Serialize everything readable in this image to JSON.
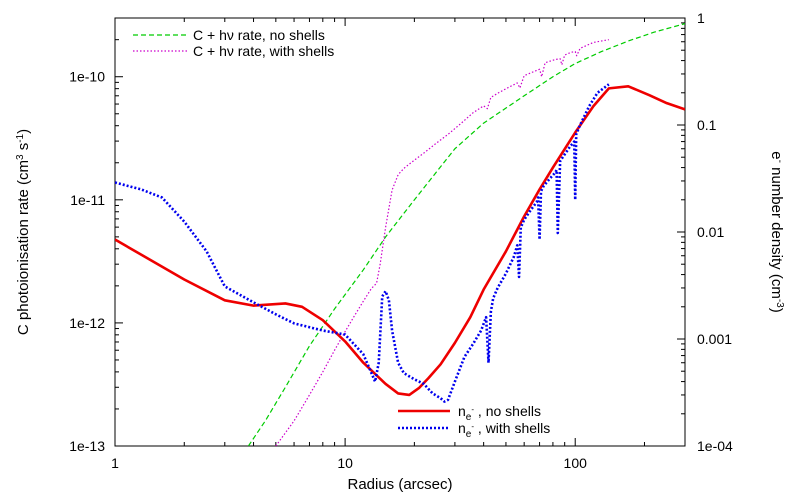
{
  "chart_data": {
    "type": "line",
    "xlabel": "Radius (arcsec)",
    "ylabel_left": "C photoionisation rate (cm^3 s^-1)",
    "ylabel_right": "e^- number density (cm^-3)",
    "x_scale": "log",
    "y_left_scale": "log",
    "y_right_scale": "log",
    "xlim": [
      1,
      300
    ],
    "ylim_left": [
      1e-13,
      3e-10
    ],
    "ylim_right": [
      0.0001,
      1
    ],
    "x_ticks": [
      {
        "value": 1,
        "label": "1"
      },
      {
        "value": 10,
        "label": "10"
      },
      {
        "value": 100,
        "label": "100"
      }
    ],
    "y_left_ticks": [
      {
        "value": 1e-13,
        "label": "1e-13"
      },
      {
        "value": 1e-12,
        "label": "1e-12"
      },
      {
        "value": 1e-11,
        "label": "1e-11"
      },
      {
        "value": 1e-10,
        "label": "1e-10"
      }
    ],
    "y_right_ticks": [
      {
        "value": 0.0001,
        "label": "1e-04"
      },
      {
        "value": 0.001,
        "label": "0.001"
      },
      {
        "value": 0.01,
        "label": "0.01"
      },
      {
        "value": 0.1,
        "label": "0.1"
      },
      {
        "value": 1,
        "label": "1"
      }
    ],
    "legend_top_left": [
      "C + hν rate, no shells",
      "C + hν rate, with shells"
    ],
    "legend_bottom": [
      "n_e- , no shells",
      "n_e- , with shells"
    ],
    "series": [
      {
        "name": "C + hν rate, no shells",
        "axis": "left",
        "color": "#00cc00",
        "dash": "5,3",
        "width": 1.2,
        "x": [
          3.8,
          4.5,
          5.5,
          7,
          9,
          12,
          15,
          20,
          30,
          40,
          60,
          80,
          100,
          130,
          170,
          220,
          300
        ],
        "y": [
          1e-13,
          1.6e-13,
          3e-13,
          6.5e-13,
          1.3e-12,
          2.7e-12,
          5e-12,
          1e-11,
          2.6e-11,
          4.2e-11,
          7e-11,
          1e-10,
          1.28e-10,
          1.6e-10,
          1.95e-10,
          2.3e-10,
          2.7e-10
        ]
      },
      {
        "name": "C + hν rate, with shells",
        "axis": "left",
        "color": "#cc00cc",
        "dash": "1.5,2",
        "width": 1.2,
        "x": [
          5,
          6,
          7,
          8,
          9,
          10,
          11,
          12,
          13,
          13.7,
          14.2,
          15,
          16,
          17,
          18,
          19,
          20,
          22,
          25,
          28,
          32,
          36,
          40,
          41.5,
          43,
          47,
          52,
          56,
          57.5,
          60,
          66,
          70,
          71.5,
          74,
          82,
          86,
          87.5,
          90,
          96,
          100,
          101.5,
          105,
          120,
          140
        ],
        "y": [
          1e-13,
          1.6e-13,
          2.6e-13,
          4e-13,
          6e-13,
          8.5e-13,
          1.15e-12,
          1.5e-12,
          1.9e-12,
          2.1e-12,
          3e-12,
          6e-12,
          1.2e-11,
          1.6e-11,
          1.8e-11,
          1.95e-11,
          2.1e-11,
          2.4e-11,
          2.9e-11,
          3.4e-11,
          4.2e-11,
          5.1e-11,
          5.8e-11,
          5.5e-11,
          6.8e-11,
          7.5e-11,
          8.3e-11,
          8.9e-11,
          8.1e-11,
          1.02e-10,
          1.1e-10,
          1.15e-10,
          1e-10,
          1.3e-10,
          1.38e-10,
          1.4e-10,
          1.25e-10,
          1.5e-10,
          1.58e-10,
          1.6e-10,
          1.48e-10,
          1.7e-10,
          1.9e-10,
          2e-10
        ]
      },
      {
        "name": "n_e- , no shells",
        "axis": "right",
        "color": "#ee0000",
        "dash": "",
        "width": 2.6,
        "x": [
          1,
          2,
          3,
          4,
          5.5,
          6.5,
          8,
          10,
          12,
          15,
          17,
          19,
          21,
          23,
          26,
          30,
          35,
          40,
          50,
          60,
          70,
          80,
          100,
          120,
          140,
          170,
          210,
          250,
          300
        ],
        "y": [
          0.0085,
          0.0036,
          0.0023,
          0.00205,
          0.00215,
          0.002,
          0.0015,
          0.00095,
          0.0006,
          0.00038,
          0.00031,
          0.0003,
          0.00035,
          0.00043,
          0.00058,
          0.00092,
          0.0016,
          0.0029,
          0.0066,
          0.014,
          0.025,
          0.04,
          0.085,
          0.15,
          0.22,
          0.23,
          0.19,
          0.16,
          0.14
        ]
      },
      {
        "name": "n_e- , with shells",
        "axis": "right",
        "color": "#0000ee",
        "dash": "2,2",
        "width": 2.6,
        "x": [
          1,
          1.3,
          1.6,
          2,
          2.5,
          3,
          4,
          5,
          6,
          8,
          10,
          12,
          13.5,
          14,
          14.5,
          15,
          15.5,
          16,
          17,
          18,
          20,
          22,
          24,
          26,
          27,
          28,
          30,
          33,
          36,
          39,
          41,
          42,
          43,
          44,
          46,
          50,
          54,
          56,
          57,
          58,
          60,
          64,
          68,
          69,
          70,
          71,
          73,
          78,
          82,
          83,
          84,
          86,
          91,
          95,
          98,
          99,
          100,
          101,
          105,
          115,
          125,
          140
        ],
        "y": [
          0.029,
          0.025,
          0.021,
          0.0125,
          0.0066,
          0.0031,
          0.0022,
          0.0017,
          0.0014,
          0.0012,
          0.0011,
          0.00072,
          0.0004,
          0.0006,
          0.0025,
          0.0028,
          0.0023,
          0.0012,
          0.0006,
          0.00048,
          0.00042,
          0.00038,
          0.00031,
          0.00028,
          0.00026,
          0.00027,
          0.0004,
          0.00068,
          0.0009,
          0.0012,
          0.0016,
          0.0006,
          0.0018,
          0.0024,
          0.003,
          0.0041,
          0.0058,
          0.0075,
          0.0038,
          0.011,
          0.013,
          0.016,
          0.019,
          0.021,
          0.0085,
          0.024,
          0.027,
          0.032,
          0.036,
          0.038,
          0.0098,
          0.046,
          0.055,
          0.063,
          0.068,
          0.07,
          0.02,
          0.082,
          0.1,
          0.15,
          0.2,
          0.24
        ]
      }
    ]
  }
}
